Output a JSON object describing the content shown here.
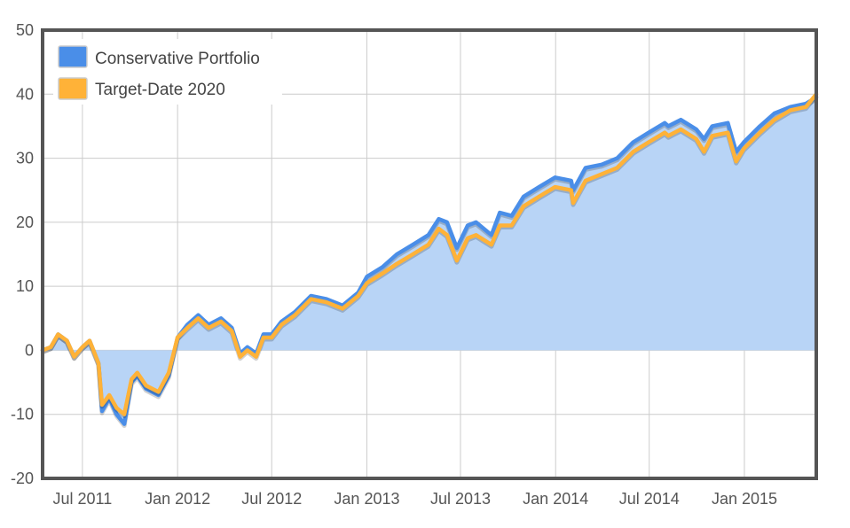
{
  "chart_data": {
    "type": "line",
    "title": "",
    "xlabel": "",
    "ylabel": "",
    "ylim": [
      -20,
      50
    ],
    "xlim": [
      "2011-04-15",
      "2015-05-20"
    ],
    "grid": true,
    "legend_placement": "top-left",
    "y_ticks": [
      "-20",
      "-10",
      "0",
      "10",
      "20",
      "30",
      "40",
      "50"
    ],
    "x_ticks": [
      {
        "date": "2011-07-01",
        "label": "Jul 2011"
      },
      {
        "date": "2012-01-01",
        "label": "Jan 2012"
      },
      {
        "date": "2012-07-01",
        "label": "Jul 2012"
      },
      {
        "date": "2013-01-01",
        "label": "Jan 2013"
      },
      {
        "date": "2013-07-01",
        "label": "Jul 2013"
      },
      {
        "date": "2014-01-01",
        "label": "Jan 2014"
      },
      {
        "date": "2014-07-01",
        "label": "Jul 2014"
      },
      {
        "date": "2015-01-01",
        "label": "Jan 2015"
      }
    ],
    "series": [
      {
        "name": "Conservative Portfolio",
        "color": "#4a8ee8",
        "fill": "#b8d4f6",
        "x": [
          "2011-04-15",
          "2011-05-01",
          "2011-05-15",
          "2011-06-01",
          "2011-06-15",
          "2011-07-01",
          "2011-07-15",
          "2011-08-01",
          "2011-08-08",
          "2011-08-22",
          "2011-09-05",
          "2011-09-20",
          "2011-10-04",
          "2011-10-15",
          "2011-11-01",
          "2011-11-25",
          "2011-12-15",
          "2012-01-01",
          "2012-01-20",
          "2012-02-10",
          "2012-03-01",
          "2012-03-25",
          "2012-04-15",
          "2012-05-01",
          "2012-05-15",
          "2012-06-01",
          "2012-06-15",
          "2012-07-01",
          "2012-07-20",
          "2012-08-15",
          "2012-09-15",
          "2012-10-15",
          "2012-11-15",
          "2012-12-15",
          "2013-01-01",
          "2013-01-31",
          "2013-02-28",
          "2013-03-31",
          "2013-04-30",
          "2013-05-20",
          "2013-06-05",
          "2013-06-24",
          "2013-07-15",
          "2013-07-31",
          "2013-08-30",
          "2013-09-15",
          "2013-10-08",
          "2013-10-31",
          "2013-11-30",
          "2013-12-31",
          "2014-01-31",
          "2014-02-04",
          "2014-02-28",
          "2014-03-31",
          "2014-04-30",
          "2014-05-31",
          "2014-06-30",
          "2014-07-31",
          "2014-08-07",
          "2014-08-31",
          "2014-09-30",
          "2014-10-15",
          "2014-10-31",
          "2014-11-30",
          "2014-12-16",
          "2014-12-31",
          "2015-01-31",
          "2015-02-28",
          "2015-03-31",
          "2015-04-30",
          "2015-05-20"
        ],
        "values": [
          0.0,
          0.5,
          2.5,
          1.5,
          -1.0,
          0.5,
          1.5,
          -2.0,
          -9.5,
          -7.5,
          -10.0,
          -11.5,
          -5.0,
          -4.0,
          -6.0,
          -7.0,
          -4.0,
          2.0,
          4.0,
          5.5,
          4.0,
          5.0,
          3.5,
          -0.5,
          0.5,
          -0.5,
          2.5,
          2.5,
          4.5,
          6.0,
          8.5,
          8.0,
          7.0,
          9.0,
          11.5,
          13.0,
          15.0,
          16.5,
          18.0,
          20.5,
          20.0,
          16.0,
          19.5,
          20.0,
          18.0,
          21.5,
          21.0,
          24.0,
          25.5,
          27.0,
          26.5,
          25.0,
          28.5,
          29.0,
          30.0,
          32.5,
          34.0,
          35.5,
          35.0,
          36.0,
          34.5,
          33.0,
          35.0,
          35.5,
          31.0,
          32.5,
          35.0,
          37.0,
          38.0,
          38.5,
          39.5
        ]
      },
      {
        "name": "Target-Date 2020",
        "color": "#ffb238",
        "x": [
          "2011-04-15",
          "2011-05-01",
          "2011-05-15",
          "2011-06-01",
          "2011-06-15",
          "2011-07-01",
          "2011-07-15",
          "2011-08-01",
          "2011-08-08",
          "2011-08-22",
          "2011-09-05",
          "2011-09-20",
          "2011-10-04",
          "2011-10-15",
          "2011-11-01",
          "2011-11-25",
          "2011-12-15",
          "2012-01-01",
          "2012-01-20",
          "2012-02-10",
          "2012-03-01",
          "2012-03-25",
          "2012-04-15",
          "2012-05-01",
          "2012-05-15",
          "2012-06-01",
          "2012-06-15",
          "2012-07-01",
          "2012-07-20",
          "2012-08-15",
          "2012-09-15",
          "2012-10-15",
          "2012-11-15",
          "2012-12-15",
          "2013-01-01",
          "2013-01-31",
          "2013-02-28",
          "2013-03-31",
          "2013-04-30",
          "2013-05-20",
          "2013-06-05",
          "2013-06-24",
          "2013-07-15",
          "2013-07-31",
          "2013-08-30",
          "2013-09-15",
          "2013-10-08",
          "2013-10-31",
          "2013-11-30",
          "2013-12-31",
          "2014-01-31",
          "2014-02-04",
          "2014-02-28",
          "2014-03-31",
          "2014-04-30",
          "2014-05-31",
          "2014-06-30",
          "2014-07-31",
          "2014-08-07",
          "2014-08-31",
          "2014-09-30",
          "2014-10-15",
          "2014-10-31",
          "2014-11-30",
          "2014-12-16",
          "2014-12-31",
          "2015-01-31",
          "2015-02-28",
          "2015-03-31",
          "2015-04-30",
          "2015-05-20"
        ],
        "values": [
          0.0,
          0.5,
          2.5,
          1.5,
          -1.0,
          0.5,
          1.5,
          -2.0,
          -8.5,
          -7.0,
          -9.0,
          -10.0,
          -4.5,
          -3.5,
          -5.5,
          -6.5,
          -3.5,
          2.0,
          3.5,
          5.0,
          3.5,
          4.5,
          3.0,
          -1.0,
          0.0,
          -1.0,
          2.0,
          2.0,
          4.0,
          5.5,
          8.0,
          7.5,
          6.5,
          8.5,
          10.5,
          12.0,
          13.5,
          15.0,
          16.5,
          19.0,
          18.0,
          14.0,
          17.5,
          18.0,
          16.5,
          19.5,
          19.5,
          22.5,
          24.0,
          25.5,
          25.0,
          23.0,
          26.5,
          27.5,
          28.5,
          31.0,
          32.5,
          34.0,
          33.5,
          34.5,
          33.0,
          31.0,
          33.5,
          34.0,
          29.5,
          31.5,
          34.0,
          36.0,
          37.5,
          38.0,
          40.0
        ]
      }
    ]
  }
}
